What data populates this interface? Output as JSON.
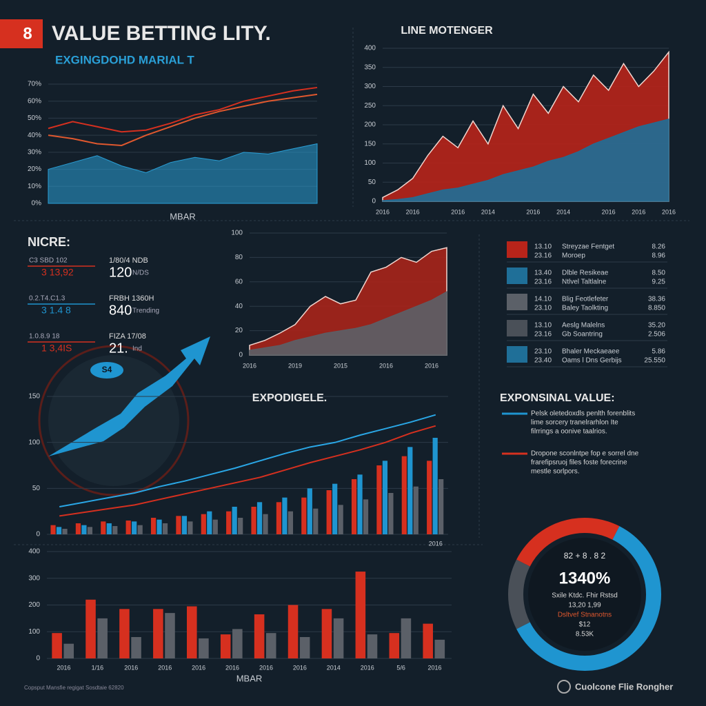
{
  "header": {
    "badge": "8",
    "title": "VALUE BETTING LITY.",
    "subtitle": "EXGINGDOHD MARIAL T"
  },
  "chart_data": [
    {
      "type": "line",
      "x_label": "MBAR",
      "ylim": [
        0,
        70
      ],
      "yticks": [
        {
          "value": 0,
          "label": "0%"
        },
        {
          "value": 10,
          "label": "10%"
        },
        {
          "value": 20,
          "label": "20%"
        },
        {
          "value": 30,
          "label": "30%"
        },
        {
          "value": 40,
          "label": "40%"
        },
        {
          "value": 50,
          "label": "50%"
        },
        {
          "value": 60,
          "label": "60%"
        },
        {
          "value": 70,
          "label": "70%"
        }
      ],
      "grid": true,
      "series": [
        {
          "color": "#d6301f",
          "area": false,
          "values": [
            44,
            48,
            45,
            42,
            43,
            47,
            52,
            55,
            60,
            63,
            66,
            68
          ]
        },
        {
          "color": "#e0582e",
          "area": false,
          "values": [
            40,
            38,
            35,
            34,
            40,
            45,
            50,
            54,
            57,
            60,
            62,
            64
          ]
        },
        {
          "color": "#2a9fd6",
          "area": true,
          "values": [
            20,
            24,
            28,
            22,
            18,
            24,
            27,
            25,
            30,
            29,
            32,
            35
          ]
        }
      ]
    },
    {
      "type": "area",
      "title": "LINE MOTENGER",
      "categories": [
        "2016",
        null,
        "2016",
        null,
        null,
        "2016",
        null,
        "2014",
        null,
        null,
        "2016",
        null,
        "2014",
        null,
        null,
        "2016",
        null,
        "2016",
        null,
        "2016"
      ],
      "ylim": [
        0,
        400
      ],
      "yticks": [
        0,
        50,
        100,
        150,
        200,
        250,
        300,
        350,
        400
      ],
      "grid": true,
      "series": [
        {
          "color": "#b8241a",
          "values": [
            10,
            30,
            60,
            120,
            170,
            140,
            210,
            150,
            250,
            190,
            280,
            230,
            300,
            260,
            330,
            290,
            360,
            300,
            340,
            390
          ]
        },
        {
          "color": "#1f6f98",
          "values": [
            2,
            5,
            10,
            20,
            30,
            35,
            45,
            55,
            70,
            80,
            90,
            105,
            115,
            130,
            150,
            165,
            180,
            195,
            205,
            215
          ]
        }
      ]
    },
    {
      "type": "area",
      "categories": [
        "2016",
        null,
        null,
        "2019",
        null,
        null,
        "2015",
        null,
        null,
        "2016",
        null,
        null,
        "2016",
        null
      ],
      "ylim": [
        0,
        100
      ],
      "yticks": [
        0,
        20,
        40,
        60,
        80,
        100
      ],
      "grid": true,
      "series": [
        {
          "color": "#a8231a",
          "values": [
            8,
            12,
            18,
            25,
            40,
            48,
            42,
            45,
            68,
            72,
            80,
            76,
            85,
            88
          ]
        },
        {
          "color": "#5b6068",
          "values": [
            4,
            6,
            8,
            12,
            15,
            18,
            20,
            22,
            25,
            30,
            35,
            40,
            45,
            52
          ]
        }
      ]
    },
    {
      "type": "combo",
      "title": "EXPODIGELE.",
      "categories": [
        null,
        null,
        null,
        null,
        null,
        null,
        null,
        null,
        null,
        null,
        null,
        null,
        null,
        null,
        null,
        "2016"
      ],
      "ylim": [
        0,
        150
      ],
      "yticks": [
        0,
        50,
        100,
        150
      ],
      "grid": true,
      "series": [
        {
          "kind": "bar",
          "color": "#d6301f",
          "values": [
            10,
            12,
            14,
            15,
            18,
            20,
            22,
            25,
            30,
            35,
            40,
            48,
            60,
            75,
            85,
            80
          ]
        },
        {
          "kind": "bar",
          "color": "#1f95d0",
          "values": [
            8,
            10,
            12,
            14,
            16,
            20,
            25,
            30,
            35,
            40,
            50,
            55,
            65,
            80,
            95,
            105
          ]
        },
        {
          "kind": "bar",
          "color": "#5b6068",
          "values": [
            6,
            8,
            9,
            10,
            12,
            14,
            16,
            18,
            22,
            25,
            28,
            32,
            38,
            45,
            52,
            60
          ]
        },
        {
          "kind": "line",
          "color": "#2aa7e6",
          "values": [
            30,
            35,
            40,
            45,
            52,
            58,
            65,
            72,
            80,
            88,
            95,
            100,
            108,
            115,
            122,
            130
          ]
        },
        {
          "kind": "line",
          "color": "#d6301f",
          "values": [
            20,
            24,
            28,
            32,
            38,
            44,
            50,
            56,
            62,
            70,
            78,
            85,
            92,
            100,
            110,
            118
          ]
        }
      ]
    },
    {
      "type": "bar",
      "x_label": "MBAR",
      "categories": [
        "2016",
        "1/16",
        "2016",
        "2016",
        "2016",
        "2016",
        "2016",
        "2016",
        "2014",
        "2016",
        "5/6",
        "2016"
      ],
      "ylim": [
        0,
        400
      ],
      "yticks": [
        0,
        100,
        200,
        300,
        400
      ],
      "grid": true,
      "series": [
        {
          "color": "#d6301f",
          "values": [
            95,
            220,
            185,
            185,
            195,
            90,
            165,
            200,
            185,
            325,
            95,
            130
          ]
        },
        {
          "color": "#5b6068",
          "values": [
            55,
            150,
            80,
            170,
            75,
            110,
            95,
            80,
            150,
            90,
            150,
            70
          ]
        }
      ]
    },
    {
      "type": "donut",
      "top_label": "82 + 8 . 8 2",
      "center_title": "1340%",
      "center_lines": [
        "Sxile Ktdc. Fhir Rstsd",
        "13,20 1,99",
        "Dsltvef Stnanotns",
        "$12",
        "8.53K"
      ],
      "values": [
        25,
        60,
        15
      ],
      "colors": [
        "#d6301f",
        "#1f95d0",
        "#4a5058"
      ]
    }
  ],
  "stats": {
    "title": "NICRE:",
    "rows": [
      {
        "left_top": "C3 SBD 102",
        "left_bottom": "3 13,92",
        "right_top": "1/80/4 NDB",
        "right_bottom": "120",
        "right_note": "N/DS",
        "color": "#d6301f"
      },
      {
        "left_top": "0.2.T4.C1.3",
        "left_bottom": "3 1.4 8",
        "right_top": "FRBH 1360H",
        "right_bottom": "840",
        "right_note": "Trending",
        "color": "#1f95d0"
      },
      {
        "left_top": "1.0.8.9 18",
        "left_bottom": "1 3,4IS",
        "right_top": "FIZA 17/08",
        "right_bottom": "21.",
        "right_note": "Ind",
        "color": "#d6301f"
      }
    ]
  },
  "badge": "S4",
  "legend_list": [
    {
      "color": "#b8241a",
      "nums": [
        "13.10",
        "23.16"
      ],
      "names": [
        "Streyzae Fentget",
        "Moroep"
      ],
      "values": [
        "8.26",
        "8.96"
      ]
    },
    {
      "color": "#1f6f98",
      "nums": [
        "13.40",
        "23.16"
      ],
      "names": [
        "Dlble Resikeae",
        "Ntlvel Taltlalne"
      ],
      "values": [
        "8.50",
        "9.25"
      ]
    },
    {
      "color": "#5b6068",
      "nums": [
        "14.10",
        "23.10"
      ],
      "names": [
        "Blig Feotlefeter",
        "Baley Taolkting"
      ],
      "values": [
        "38.36",
        "8.850"
      ]
    },
    {
      "color": "#4a5058",
      "nums": [
        "13.10",
        "23.16"
      ],
      "names": [
        "Aeslg Malelns",
        "Gb Soantring"
      ],
      "values": [
        "35.20",
        "2.506"
      ]
    },
    {
      "color": "#1f6f98",
      "nums": [
        "23.10",
        "23.40"
      ],
      "names": [
        "Bhaler Meckaeaee",
        "Oams l Dns Gerbijs"
      ],
      "values": [
        "5.86",
        "25.550"
      ]
    }
  ],
  "notes": {
    "title": "EXPONSINAL VALUE:",
    "items": [
      {
        "color": "#1f95d0",
        "lines": [
          "Pelsk oletedoxdls penlth forenblits",
          "lime sorcery tranelrarhlon Ite",
          "filrrings a oonive taalrios."
        ]
      },
      {
        "color": "#d6301f",
        "lines": [
          "Dropone sconlntpe fop e sorrel dne",
          "frarefipsruoj files foste forecrine",
          "mestle sorlpors."
        ]
      }
    ]
  },
  "footer": {
    "left": "Copsput Mansfie regigat Sosdtaie 62820",
    "right": "Cuolcone Flie Rongher"
  }
}
